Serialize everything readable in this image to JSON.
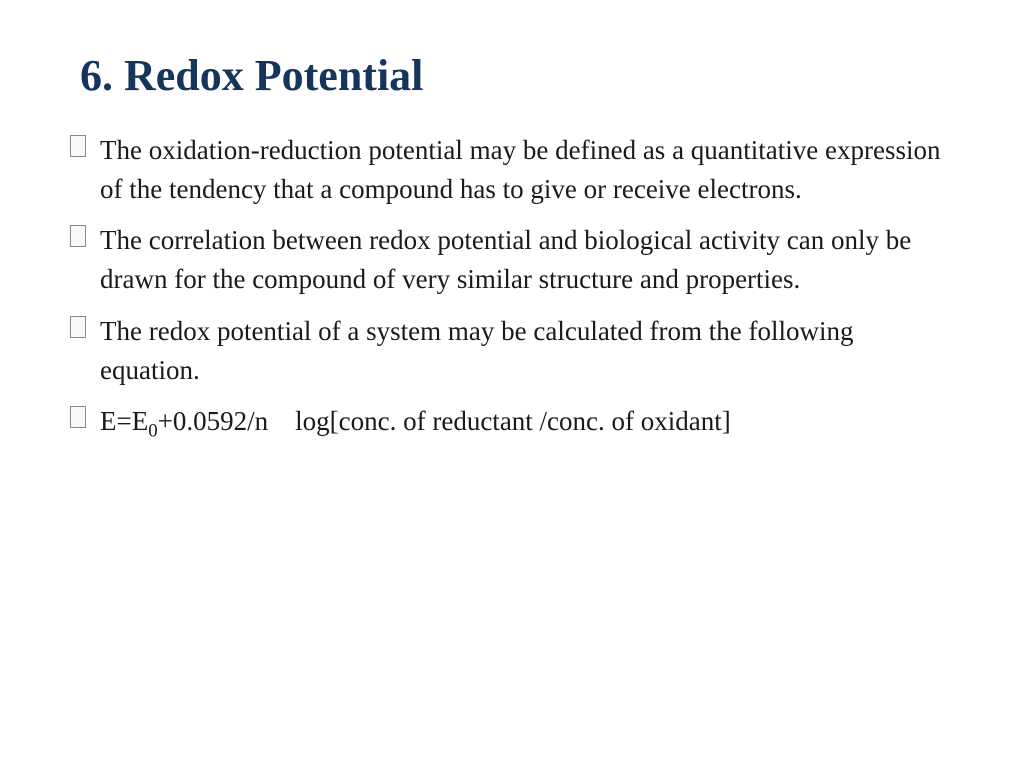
{
  "slide": {
    "title": "6. Redox Potential",
    "title_color": "#14365d",
    "title_fontsize": 44,
    "body_fontsize": 27,
    "body_color": "#1a1a1a",
    "background_color": "#ffffff",
    "bullets": [
      {
        "text": "The oxidation-reduction potential may be defined as a quantitative expression of the tendency that a compound has to give or receive electrons."
      },
      {
        "text": "The correlation between redox potential and biological activity can only be drawn for the compound of very similar structure and properties."
      },
      {
        "text": "The redox potential of a system may be calculated from the following equation."
      }
    ],
    "equation": {
      "prefix": "E=E",
      "subscript": "0",
      "suffix": "+0.0592/n log[conc. of reductant /conc. of oxidant]"
    }
  }
}
